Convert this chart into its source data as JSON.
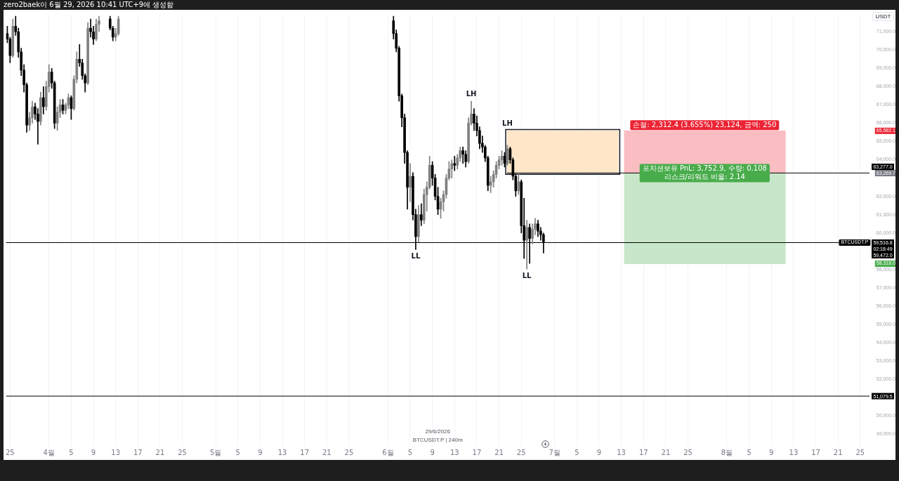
{
  "chart_data": {
    "type": "candlestick",
    "title": "zero2baek이 6월 29, 2026 10:41 UTC+9에 생성함",
    "ylabel": "USDT",
    "grid": "x",
    "xlim": [
      "2026-03-24T06:00",
      "2026-08-26T16:00"
    ],
    "xticks": [
      {
        "value": "2026-03-25",
        "label": "25"
      },
      {
        "value": "2026-04-01",
        "label": "4월"
      },
      {
        "value": "2026-04-05",
        "label": "5"
      },
      {
        "value": "2026-04-09",
        "label": "9"
      },
      {
        "value": "2026-04-13",
        "label": "13"
      },
      {
        "value": "2026-04-17",
        "label": "17"
      },
      {
        "value": "2026-04-21",
        "label": "21"
      },
      {
        "value": "2026-04-25",
        "label": "25"
      },
      {
        "value": "2026-05-01",
        "label": "5월"
      },
      {
        "value": "2026-05-05",
        "label": "5"
      },
      {
        "value": "2026-05-09",
        "label": "9"
      },
      {
        "value": "2026-05-13",
        "label": "13"
      },
      {
        "value": "2026-05-17",
        "label": "17"
      },
      {
        "value": "2026-05-21",
        "label": "21"
      },
      {
        "value": "2026-05-25",
        "label": "25"
      },
      {
        "value": "2026-06-01",
        "label": "6월"
      },
      {
        "value": "2026-06-05",
        "label": "5"
      },
      {
        "value": "2026-06-09",
        "label": "9"
      },
      {
        "value": "2026-06-13",
        "label": "13"
      },
      {
        "value": "2026-06-17",
        "label": "17"
      },
      {
        "value": "2026-06-21",
        "label": "21"
      },
      {
        "value": "2026-06-25",
        "label": "25"
      },
      {
        "value": "2026-07-01",
        "label": "7월"
      },
      {
        "value": "2026-07-05",
        "label": "5"
      },
      {
        "value": "2026-07-09",
        "label": "9"
      },
      {
        "value": "2026-07-13",
        "label": "13"
      },
      {
        "value": "2026-07-17",
        "label": "17"
      },
      {
        "value": "2026-07-21",
        "label": "21"
      },
      {
        "value": "2026-07-25",
        "label": "25"
      },
      {
        "value": "2026-08-01",
        "label": "8월"
      },
      {
        "value": "2026-08-05",
        "label": "5"
      },
      {
        "value": "2026-08-09",
        "label": "9"
      },
      {
        "value": "2026-08-13",
        "label": "13"
      },
      {
        "value": "2026-08-17",
        "label": "17"
      },
      {
        "value": "2026-08-21",
        "label": "21"
      },
      {
        "value": "2026-08-25",
        "label": "25"
      }
    ],
    "ylim": [
      48320,
      71910
    ],
    "yticks": [
      {
        "value": 49000,
        "label": "49,000.0"
      },
      {
        "value": 50000,
        "label": "50,000.0"
      },
      {
        "value": 52000,
        "label": "52,000.0"
      },
      {
        "value": 53000,
        "label": "53,000.0"
      },
      {
        "value": 54000,
        "label": "54,000.0"
      },
      {
        "value": 55000,
        "label": "55,000.0"
      },
      {
        "value": 56000,
        "label": "56,000.0"
      },
      {
        "value": 57000,
        "label": "57,000.0"
      },
      {
        "value": 58000,
        "label": "58,000.0"
      },
      {
        "value": 58318.0,
        "label": "58,318.0"
      },
      {
        "value": 60000,
        "label": "60,000.0"
      },
      {
        "value": 61000,
        "label": "61,000.0"
      },
      {
        "value": 62000,
        "label": "62,000.0"
      },
      {
        "value": 63269.7,
        "label": "63,269.7"
      },
      {
        "value": 64000,
        "label": "64,000.0"
      },
      {
        "value": 65000,
        "label": "65,000.0"
      },
      {
        "value": 65582.1,
        "label": "65,582.1"
      },
      {
        "value": 66000,
        "label": "66,000.0"
      },
      {
        "value": 67000,
        "label": "67,000.0"
      },
      {
        "value": 68000,
        "label": "68,000.0"
      },
      {
        "value": 69000,
        "label": "69,000.0"
      },
      {
        "value": 70000,
        "label": "70,000.0"
      },
      {
        "value": 71000,
        "label": "71,000.0"
      }
    ],
    "series": [
      {
        "x": [
          "2026-03-24T12:00",
          "2026-03-25T00:00",
          "2026-03-25T12:00",
          "2026-03-26T00:00",
          "2026-03-26T12:00",
          "2026-03-27T00:00",
          "2026-03-27T12:00",
          "2026-03-28T00:00",
          "2026-03-28T12:00",
          "2026-03-29T00:00",
          "2026-03-29T12:00",
          "2026-03-30T00:00",
          "2026-03-30T12:00",
          "2026-03-31T00:00",
          "2026-03-31T12:00",
          "2026-04-01T00:00",
          "2026-04-01T12:00",
          "2026-04-02T00:00",
          "2026-04-02T12:00",
          "2026-04-03T00:00",
          "2026-04-03T12:00",
          "2026-04-04T00:00",
          "2026-04-04T12:00",
          "2026-04-05T00:00",
          "2026-04-05T12:00",
          "2026-04-06T00:00",
          "2026-04-06T12:00",
          "2026-04-07T00:00",
          "2026-04-07T12:00",
          "2026-04-08T00:00",
          "2026-04-08T12:00",
          "2026-04-09T00:00",
          "2026-04-09T12:00",
          "2026-04-10T00:00",
          "2026-04-12T00:00",
          "2026-04-12T12:00",
          "2026-04-13T00:00",
          "2026-04-13T12:00",
          "2026-06-02T00:00",
          "2026-06-02T12:00",
          "2026-06-03T00:00",
          "2026-06-03T12:00",
          "2026-06-04T00:00",
          "2026-06-04T12:00",
          "2026-06-05T00:00",
          "2026-06-05T12:00",
          "2026-06-06T00:00",
          "2026-06-06T12:00",
          "2026-06-07T00:00",
          "2026-06-07T12:00",
          "2026-06-08T00:00",
          "2026-06-08T12:00",
          "2026-06-09T00:00",
          "2026-06-09T12:00",
          "2026-06-10T00:00",
          "2026-06-10T12:00",
          "2026-06-11T00:00",
          "2026-06-11T12:00",
          "2026-06-12T00:00",
          "2026-06-12T12:00",
          "2026-06-13T00:00",
          "2026-06-13T12:00",
          "2026-06-14T00:00",
          "2026-06-14T12:00",
          "2026-06-15T00:00",
          "2026-06-15T12:00",
          "2026-06-16T00:00",
          "2026-06-16T12:00",
          "2026-06-17T00:00",
          "2026-06-17T12:00",
          "2026-06-18T00:00",
          "2026-06-18T12:00",
          "2026-06-19T00:00",
          "2026-06-19T12:00",
          "2026-06-20T00:00",
          "2026-06-20T12:00",
          "2026-06-21T00:00",
          "2026-06-21T12:00",
          "2026-06-22T00:00",
          "2026-06-22T12:00",
          "2026-06-23T00:00",
          "2026-06-23T12:00",
          "2026-06-24T00:00",
          "2026-06-24T12:00",
          "2026-06-25T00:00",
          "2026-06-25T12:00",
          "2026-06-26T00:00",
          "2026-06-26T12:00",
          "2026-06-27T00:00",
          "2026-06-27T12:00",
          "2026-06-28T00:00",
          "2026-06-28T12:00",
          "2026-06-29T00:00"
        ],
        "ohlc": [
          [
            70900,
            71300,
            70400,
            70600
          ],
          [
            70600,
            70700,
            69300,
            69700
          ],
          [
            69700,
            71700,
            69600,
            71300
          ],
          [
            71300,
            71850,
            70800,
            71000
          ],
          [
            71000,
            71200,
            69600,
            69900
          ],
          [
            69900,
            70100,
            68600,
            68900
          ],
          [
            68900,
            69200,
            67700,
            68100
          ],
          [
            68100,
            68200,
            65500,
            65900
          ],
          [
            65900,
            66600,
            65600,
            66300
          ],
          [
            66300,
            67200,
            66000,
            66900
          ],
          [
            66900,
            67100,
            66200,
            66500
          ],
          [
            66500,
            66800,
            64850,
            66100
          ],
          [
            66100,
            67700,
            65900,
            67400
          ],
          [
            67400,
            68000,
            66500,
            66900
          ],
          [
            66900,
            68300,
            66700,
            68000
          ],
          [
            68000,
            69200,
            67700,
            68800
          ],
          [
            68800,
            69000,
            67900,
            68200
          ],
          [
            68200,
            68300,
            65700,
            66000
          ],
          [
            66000,
            66900,
            65600,
            66600
          ],
          [
            66600,
            67300,
            66300,
            67000
          ],
          [
            67000,
            67300,
            66500,
            66700
          ],
          [
            66700,
            67100,
            66500,
            67000
          ],
          [
            67000,
            67600,
            66800,
            67400
          ],
          [
            67400,
            67500,
            66200,
            66800
          ],
          [
            66800,
            68600,
            66700,
            68400
          ],
          [
            68400,
            69900,
            68200,
            69500
          ],
          [
            69500,
            70300,
            69100,
            69300
          ],
          [
            69300,
            69500,
            68400,
            68600
          ],
          [
            68600,
            68700,
            67700,
            68200
          ],
          [
            68200,
            71500,
            68100,
            71200
          ],
          [
            71200,
            71700,
            70700,
            71000
          ],
          [
            71000,
            71300,
            70300,
            70600
          ],
          [
            70600,
            71700,
            70500,
            71400
          ],
          [
            71400,
            71850,
            71000,
            71600
          ],
          [
            71700,
            71850,
            71100,
            71200
          ],
          [
            71200,
            71300,
            70500,
            70700
          ],
          [
            70700,
            71200,
            70500,
            70900
          ],
          [
            70900,
            71850,
            70800,
            71700
          ],
          [
            71600,
            71850,
            70600,
            70900
          ],
          [
            70900,
            71100,
            69900,
            70100
          ],
          [
            70100,
            70200,
            67200,
            67500
          ],
          [
            67500,
            67600,
            65800,
            66300
          ],
          [
            66300,
            66500,
            63800,
            64400
          ],
          [
            64400,
            64500,
            61300,
            62500
          ],
          [
            62500,
            63800,
            61700,
            63100
          ],
          [
            63100,
            63300,
            60700,
            61000
          ],
          [
            61000,
            61300,
            59090,
            59800
          ],
          [
            59800,
            61500,
            59500,
            61000
          ],
          [
            61000,
            61600,
            60400,
            60700
          ],
          [
            60700,
            62400,
            60500,
            62100
          ],
          [
            62100,
            62800,
            61200,
            62500
          ],
          [
            62500,
            64200,
            62400,
            63700
          ],
          [
            63700,
            63900,
            62600,
            63000
          ],
          [
            63000,
            63200,
            61800,
            62000
          ],
          [
            62000,
            62500,
            61000,
            61300
          ],
          [
            61300,
            61900,
            60800,
            61700
          ],
          [
            61700,
            62300,
            61200,
            62100
          ],
          [
            62100,
            63200,
            61900,
            63000
          ],
          [
            63000,
            63900,
            62900,
            63500
          ],
          [
            63500,
            64000,
            63000,
            63800
          ],
          [
            63800,
            64200,
            63400,
            63700
          ],
          [
            63700,
            64300,
            63500,
            64100
          ],
          [
            64100,
            64700,
            63900,
            64500
          ],
          [
            64500,
            64700,
            63800,
            64300
          ],
          [
            64300,
            64500,
            63600,
            63900
          ],
          [
            63900,
            66300,
            63800,
            66000
          ],
          [
            66000,
            67200,
            65900,
            66500
          ],
          [
            66500,
            66800,
            65600,
            66000
          ],
          [
            66000,
            66400,
            65300,
            65600
          ],
          [
            65600,
            65800,
            64600,
            64900
          ],
          [
            64900,
            65300,
            64400,
            64700
          ],
          [
            64700,
            64800,
            63900,
            64100
          ],
          [
            64100,
            64200,
            62300,
            62600
          ],
          [
            62600,
            63100,
            62200,
            62800
          ],
          [
            62800,
            63400,
            62500,
            63200
          ],
          [
            63200,
            63900,
            63000,
            63700
          ],
          [
            63700,
            64200,
            63500,
            64000
          ],
          [
            64000,
            64500,
            63700,
            64200
          ],
          [
            64200,
            64400,
            63600,
            63800
          ],
          [
            63800,
            64800,
            63700,
            64600
          ],
          [
            64600,
            64700,
            63800,
            64000
          ],
          [
            64000,
            64100,
            62900,
            63100
          ],
          [
            63100,
            63200,
            62000,
            62300
          ],
          [
            62300,
            63300,
            62100,
            62800
          ],
          [
            62800,
            62900,
            60000,
            60400
          ],
          [
            60400,
            61900,
            58600,
            59600
          ],
          [
            59600,
            60700,
            58030,
            60300
          ],
          [
            60300,
            60500,
            58330,
            59700
          ],
          [
            59700,
            60500,
            59400,
            60200
          ],
          [
            60200,
            60800,
            59900,
            60500
          ],
          [
            60500,
            60700,
            59800,
            60100
          ],
          [
            60100,
            60300,
            59600,
            59900
          ],
          [
            59900,
            60000,
            58900,
            59516.8
          ]
        ],
        "colors": [
          "#000000",
          "#000000",
          "#808080",
          "#000000",
          "#000000",
          "#000000",
          "#000000",
          "#000000",
          "#808080",
          "#808080",
          "#000000",
          "#000000",
          "#808080",
          "#000000",
          "#808080",
          "#808080",
          "#000000",
          "#000000",
          "#808080",
          "#808080",
          "#000000",
          "#808080",
          "#808080",
          "#000000",
          "#808080",
          "#808080",
          "#000000",
          "#000000",
          "#000000",
          "#808080",
          "#000000",
          "#000000",
          "#808080",
          "#808080",
          "#000000",
          "#000000",
          "#808080",
          "#808080",
          "#000000",
          "#000000",
          "#000000",
          "#000000",
          "#000000",
          "#000000",
          "#808080",
          "#000000",
          "#000000",
          "#808080",
          "#000000",
          "#808080",
          "#808080",
          "#808080",
          "#000000",
          "#000000",
          "#000000",
          "#808080",
          "#808080",
          "#808080",
          "#808080",
          "#808080",
          "#000000",
          "#808080",
          "#808080",
          "#000000",
          "#000000",
          "#808080",
          "#808080",
          "#000000",
          "#000000",
          "#000000",
          "#000000",
          "#000000",
          "#000000",
          "#808080",
          "#808080",
          "#808080",
          "#808080",
          "#808080",
          "#000000",
          "#808080",
          "#000000",
          "#000000",
          "#000000",
          "#808080",
          "#000000",
          "#000000",
          "#808080",
          "#000000",
          "#808080",
          "#808080",
          "#000000",
          "#000000",
          "#000000"
        ]
      },
      {
        "type": "line",
        "x": [
          "2026-07-13T12:00",
          "2026-08-11T14:00"
        ],
        "values": [
          65582.1,
          65582.1
        ],
        "lower": [
          63269.7,
          63269.7
        ],
        "upper": [
          65582.1,
          65582.1
        ],
        "color": "#f9bdc2"
      },
      {
        "type": "line",
        "x": [
          "2026-07-13T12:00",
          "2026-08-11T14:00"
        ],
        "values": [
          58318.0,
          58318.0
        ],
        "lower": [
          58318.0,
          58318.0
        ],
        "upper": [
          63269.7,
          63269.7
        ],
        "color": "#c8e6c9"
      },
      {
        "type": "line",
        "x": [
          "2026-06-22T10:00",
          "2026-07-12T12:00"
        ],
        "values": [
          65582.1,
          65582.1
        ],
        "lower": [
          63269.7,
          63269.7
        ],
        "upper": [
          65582.1,
          65582.1
        ],
        "color": "#ffe6c8",
        "line_style": "solid"
      },
      {
        "type": "line",
        "x": [
          "2026-06-22T10:00",
          "2026-08-26T16:00"
        ],
        "values": [
          63277.0,
          63277.0
        ],
        "color": "#000000"
      }
    ],
    "ref_lines": [
      {
        "axis": "y",
        "value": 59472.0,
        "label": "59,472.0",
        "color": "#000000"
      },
      {
        "axis": "y",
        "value": 51079.5,
        "label": "51,079.5",
        "color": "#000000"
      }
    ],
    "annotations": [
      {
        "text": "LH",
        "x": "2026-06-16T00:00",
        "y": 67200
      },
      {
        "text": "LL",
        "x": "2026-06-06T00:00",
        "y": 59090
      },
      {
        "text": "LH",
        "x": "2026-06-22T12:00",
        "y": 64800
      },
      {
        "text": "LL",
        "x": "2026-06-26T00:00",
        "y": 58030
      },
      {
        "text": "손절: 2,312.4 (3.655%) 23,124, 금액: 250",
        "x": "2026-07-28T00:00",
        "y": 65582.1
      },
      {
        "text": "포지션보유 PnL: 3,752.9, 수량: 0.108\n리스크/리워드 비율: 2.14",
        "x": "2026-07-28T00:00",
        "y": 63269.7
      },
      {
        "text": "63,277.0",
        "x": "2026-08-26T16:00",
        "y": 63277.0
      },
      {
        "text": "59,516.8",
        "x": "2026-08-26T16:00",
        "y": 59472.0
      },
      {
        "text": "02:18:49",
        "x": "2026-08-26T16:00",
        "y": 59472.0
      },
      {
        "text": "BTCUSDT.P",
        "x": "2026-08-24T00:00",
        "y": 59472.0
      },
      "29/6/2026",
      "BTCUSDT.P | 240m"
    ]
  }
}
